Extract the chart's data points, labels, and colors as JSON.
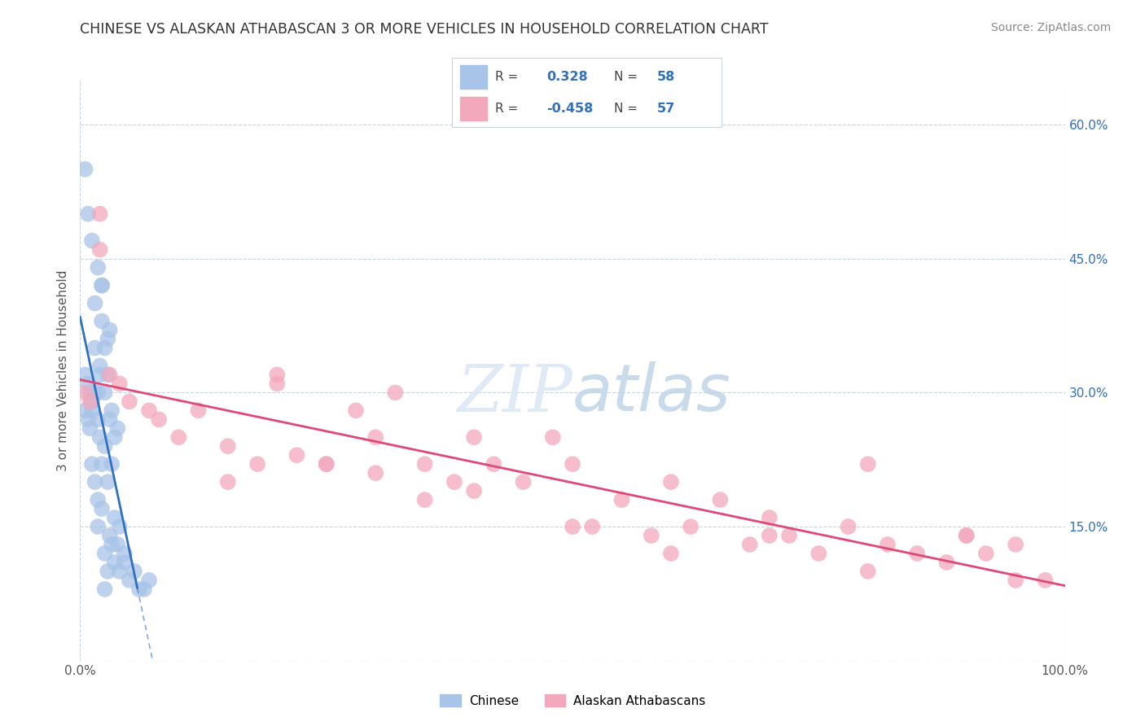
{
  "title": "CHINESE VS ALASKAN ATHABASCAN 3 OR MORE VEHICLES IN HOUSEHOLD CORRELATION CHART",
  "source": "Source: ZipAtlas.com",
  "ylabel": "3 or more Vehicles in Household",
  "y_ticks": [
    0.0,
    0.15,
    0.3,
    0.45,
    0.6
  ],
  "y_tick_labels": [
    "",
    "15.0%",
    "30.0%",
    "45.0%",
    "60.0%"
  ],
  "x_range": [
    0.0,
    1.0
  ],
  "y_range": [
    0.0,
    0.65
  ],
  "chinese_R": 0.328,
  "chinese_N": 58,
  "athabascan_R": -0.458,
  "athabascan_N": 57,
  "chinese_color": "#a8c4e8",
  "athabascan_color": "#f4a8bc",
  "chinese_line_color": "#3070c0",
  "athabascan_line_color": "#e04878",
  "watermark_color": "#c8d8ee",
  "background_color": "#ffffff",
  "grid_color": "#c8d4e0",
  "legend_text_color": "#3070c0",
  "legend_border_color": "#c8d4e0",
  "chinese_x": [
    0.005,
    0.01,
    0.005,
    0.008,
    0.01,
    0.012,
    0.008,
    0.015,
    0.012,
    0.018,
    0.015,
    0.02,
    0.018,
    0.022,
    0.015,
    0.025,
    0.02,
    0.028,
    0.022,
    0.03,
    0.025,
    0.032,
    0.028,
    0.035,
    0.03,
    0.038,
    0.012,
    0.015,
    0.018,
    0.02,
    0.022,
    0.025,
    0.018,
    0.022,
    0.028,
    0.032,
    0.025,
    0.03,
    0.035,
    0.025,
    0.028,
    0.032,
    0.035,
    0.04,
    0.038,
    0.045,
    0.04,
    0.05,
    0.045,
    0.06,
    0.055,
    0.07,
    0.065,
    0.008,
    0.012,
    0.018,
    0.022,
    0.005
  ],
  "chinese_y": [
    0.28,
    0.3,
    0.32,
    0.27,
    0.26,
    0.29,
    0.31,
    0.3,
    0.28,
    0.27,
    0.35,
    0.32,
    0.3,
    0.38,
    0.4,
    0.35,
    0.33,
    0.36,
    0.42,
    0.37,
    0.3,
    0.28,
    0.32,
    0.25,
    0.27,
    0.26,
    0.22,
    0.2,
    0.18,
    0.25,
    0.22,
    0.24,
    0.15,
    0.17,
    0.2,
    0.22,
    0.12,
    0.14,
    0.16,
    0.08,
    0.1,
    0.13,
    0.11,
    0.15,
    0.13,
    0.12,
    0.1,
    0.09,
    0.11,
    0.08,
    0.1,
    0.09,
    0.08,
    0.5,
    0.47,
    0.44,
    0.42,
    0.55
  ],
  "athabascan_x": [
    0.005,
    0.01,
    0.02,
    0.03,
    0.04,
    0.05,
    0.07,
    0.08,
    0.1,
    0.12,
    0.15,
    0.18,
    0.2,
    0.22,
    0.25,
    0.28,
    0.3,
    0.32,
    0.35,
    0.38,
    0.4,
    0.42,
    0.45,
    0.48,
    0.5,
    0.52,
    0.55,
    0.58,
    0.6,
    0.62,
    0.65,
    0.68,
    0.7,
    0.72,
    0.75,
    0.78,
    0.8,
    0.82,
    0.85,
    0.88,
    0.9,
    0.92,
    0.95,
    0.98,
    0.15,
    0.2,
    0.25,
    0.3,
    0.35,
    0.4,
    0.5,
    0.6,
    0.7,
    0.8,
    0.9,
    0.95,
    0.02
  ],
  "athabascan_y": [
    0.3,
    0.29,
    0.46,
    0.32,
    0.31,
    0.29,
    0.28,
    0.27,
    0.25,
    0.28,
    0.24,
    0.22,
    0.32,
    0.23,
    0.22,
    0.28,
    0.25,
    0.3,
    0.22,
    0.2,
    0.25,
    0.22,
    0.2,
    0.25,
    0.22,
    0.15,
    0.18,
    0.14,
    0.2,
    0.15,
    0.18,
    0.13,
    0.16,
    0.14,
    0.12,
    0.15,
    0.22,
    0.13,
    0.12,
    0.11,
    0.14,
    0.12,
    0.13,
    0.09,
    0.2,
    0.31,
    0.22,
    0.21,
    0.18,
    0.19,
    0.15,
    0.12,
    0.14,
    0.1,
    0.14,
    0.09,
    0.5
  ]
}
